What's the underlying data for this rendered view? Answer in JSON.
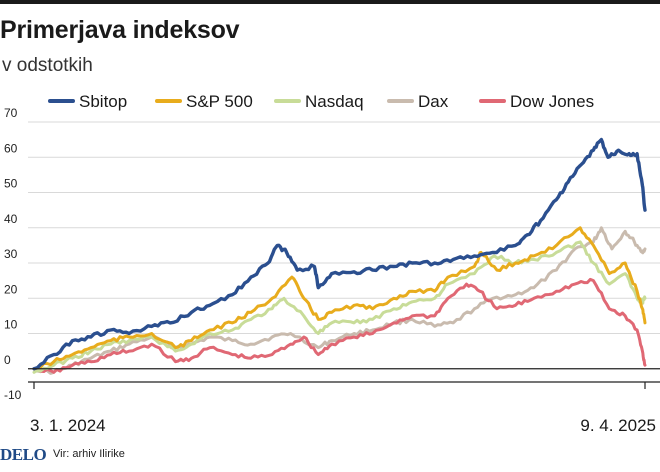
{
  "title": "Primerjava indeksov",
  "subtitle": "v odstotkih",
  "footer": {
    "logo": "DELO",
    "source": "Vir: arhiv Ilirike"
  },
  "colors": {
    "sbitop": "#2b4f8f",
    "sp500": "#e8ac1d",
    "nasdaq": "#c8dc98",
    "dax": "#c9bbae",
    "dowjones": "#e06874",
    "grid": "#d9d9d9",
    "axis": "#222222"
  },
  "chart_data": {
    "type": "line",
    "title": "Primerjava indeksov",
    "subtitle": "v odstotkih",
    "legend_position": "top",
    "grid": true,
    "ylim": [
      -10,
      70
    ],
    "yticks": [
      -10,
      0,
      10,
      20,
      30,
      40,
      50,
      60,
      70
    ],
    "xlim": [
      "2024-01-03",
      "2025-04-09"
    ],
    "x_labels": [
      "3. 1. 2024",
      "9. 4. 2025"
    ],
    "series": [
      {
        "name": "Sbitop",
        "key": "sbitop",
        "points": [
          [
            "2024-01-03",
            0
          ],
          [
            "2024-01-18",
            4
          ],
          [
            "2024-02-01",
            8
          ],
          [
            "2024-02-15",
            9
          ],
          [
            "2024-03-01",
            11
          ],
          [
            "2024-03-15",
            10
          ],
          [
            "2024-04-01",
            12
          ],
          [
            "2024-04-15",
            13
          ],
          [
            "2024-05-01",
            16
          ],
          [
            "2024-05-15",
            18
          ],
          [
            "2024-06-01",
            21
          ],
          [
            "2024-06-15",
            26
          ],
          [
            "2024-06-28",
            30
          ],
          [
            "2024-07-05",
            35
          ],
          [
            "2024-07-12",
            33
          ],
          [
            "2024-07-20",
            28
          ],
          [
            "2024-08-02",
            29
          ],
          [
            "2024-08-05",
            23
          ],
          [
            "2024-08-15",
            27
          ],
          [
            "2024-09-01",
            27.5
          ],
          [
            "2024-09-15",
            28
          ],
          [
            "2024-10-01",
            29
          ],
          [
            "2024-10-15",
            30
          ],
          [
            "2024-11-01",
            30
          ],
          [
            "2024-11-15",
            31
          ],
          [
            "2024-12-01",
            32
          ],
          [
            "2024-12-15",
            33
          ],
          [
            "2025-01-01",
            35
          ],
          [
            "2025-01-10",
            38
          ],
          [
            "2025-01-20",
            42
          ],
          [
            "2025-02-01",
            48
          ],
          [
            "2025-02-10",
            53
          ],
          [
            "2025-02-20",
            58
          ],
          [
            "2025-03-01",
            62
          ],
          [
            "2025-03-07",
            65
          ],
          [
            "2025-03-12",
            60
          ],
          [
            "2025-03-20",
            62
          ],
          [
            "2025-03-28",
            61
          ],
          [
            "2025-04-03",
            61
          ],
          [
            "2025-04-07",
            52
          ],
          [
            "2025-04-09",
            45
          ]
        ]
      },
      {
        "name": "S&P 500",
        "key": "sp500",
        "points": [
          [
            "2024-01-03",
            0
          ],
          [
            "2024-01-18",
            2
          ],
          [
            "2024-02-01",
            4
          ],
          [
            "2024-02-15",
            6
          ],
          [
            "2024-03-01",
            8
          ],
          [
            "2024-03-15",
            9
          ],
          [
            "2024-04-01",
            10
          ],
          [
            "2024-04-19",
            6
          ],
          [
            "2024-05-01",
            8
          ],
          [
            "2024-05-15",
            11
          ],
          [
            "2024-06-01",
            13
          ],
          [
            "2024-06-15",
            16
          ],
          [
            "2024-07-01",
            20
          ],
          [
            "2024-07-16",
            26
          ],
          [
            "2024-07-25",
            20
          ],
          [
            "2024-08-05",
            14
          ],
          [
            "2024-08-15",
            16
          ],
          [
            "2024-09-01",
            18
          ],
          [
            "2024-09-15",
            17
          ],
          [
            "2024-10-01",
            20
          ],
          [
            "2024-10-15",
            22
          ],
          [
            "2024-11-01",
            22
          ],
          [
            "2024-11-11",
            26
          ],
          [
            "2024-12-01",
            29
          ],
          [
            "2024-12-06",
            33
          ],
          [
            "2024-12-18",
            28
          ],
          [
            "2025-01-01",
            30
          ],
          [
            "2025-01-15",
            32
          ],
          [
            "2025-02-01",
            35
          ],
          [
            "2025-02-19",
            40
          ],
          [
            "2025-03-01",
            35
          ],
          [
            "2025-03-13",
            27
          ],
          [
            "2025-03-25",
            30
          ],
          [
            "2025-04-03",
            22
          ],
          [
            "2025-04-07",
            17
          ],
          [
            "2025-04-09",
            13
          ]
        ]
      },
      {
        "name": "Nasdaq",
        "key": "nasdaq",
        "points": [
          [
            "2024-01-03",
            -1
          ],
          [
            "2024-01-18",
            1
          ],
          [
            "2024-02-01",
            3
          ],
          [
            "2024-02-15",
            5
          ],
          [
            "2024-03-01",
            7
          ],
          [
            "2024-03-15",
            8
          ],
          [
            "2024-04-01",
            9
          ],
          [
            "2024-04-19",
            5
          ],
          [
            "2024-05-01",
            7
          ],
          [
            "2024-05-15",
            10
          ],
          [
            "2024-06-01",
            11
          ],
          [
            "2024-06-15",
            14
          ],
          [
            "2024-07-01",
            17
          ],
          [
            "2024-07-10",
            20
          ],
          [
            "2024-07-25",
            15
          ],
          [
            "2024-08-05",
            10
          ],
          [
            "2024-08-15",
            13
          ],
          [
            "2024-09-01",
            13
          ],
          [
            "2024-09-15",
            14
          ],
          [
            "2024-10-01",
            17
          ],
          [
            "2024-10-15",
            19
          ],
          [
            "2024-11-01",
            20
          ],
          [
            "2024-11-11",
            24
          ],
          [
            "2024-12-01",
            27
          ],
          [
            "2024-12-16",
            32
          ],
          [
            "2025-01-01",
            30
          ],
          [
            "2025-01-15",
            31
          ],
          [
            "2025-02-01",
            33
          ],
          [
            "2025-02-19",
            36
          ],
          [
            "2025-03-01",
            30
          ],
          [
            "2025-03-13",
            24
          ],
          [
            "2025-03-25",
            27
          ],
          [
            "2025-04-03",
            20
          ],
          [
            "2025-04-07",
            19
          ],
          [
            "2025-04-09",
            20
          ]
        ]
      },
      {
        "name": "Dax",
        "key": "dax",
        "points": [
          [
            "2024-01-03",
            0
          ],
          [
            "2024-01-18",
            -1
          ],
          [
            "2024-02-01",
            1
          ],
          [
            "2024-02-15",
            3
          ],
          [
            "2024-03-01",
            5
          ],
          [
            "2024-03-15",
            7
          ],
          [
            "2024-04-01",
            9
          ],
          [
            "2024-04-19",
            6
          ],
          [
            "2024-05-01",
            7
          ],
          [
            "2024-05-15",
            9
          ],
          [
            "2024-06-01",
            8
          ],
          [
            "2024-06-15",
            7
          ],
          [
            "2024-07-01",
            9
          ],
          [
            "2024-07-15",
            10
          ],
          [
            "2024-08-05",
            6
          ],
          [
            "2024-08-15",
            8
          ],
          [
            "2024-09-01",
            10
          ],
          [
            "2024-09-15",
            11
          ],
          [
            "2024-10-01",
            13
          ],
          [
            "2024-10-15",
            14
          ],
          [
            "2024-11-01",
            12
          ],
          [
            "2024-11-15",
            13
          ],
          [
            "2024-12-01",
            17
          ],
          [
            "2024-12-15",
            20
          ],
          [
            "2025-01-01",
            21
          ],
          [
            "2025-01-15",
            23
          ],
          [
            "2025-02-01",
            28
          ],
          [
            "2025-02-15",
            34
          ],
          [
            "2025-03-01",
            36
          ],
          [
            "2025-03-07",
            40
          ],
          [
            "2025-03-15",
            34
          ],
          [
            "2025-03-25",
            39
          ],
          [
            "2025-04-01",
            36
          ],
          [
            "2025-04-07",
            33
          ],
          [
            "2025-04-09",
            34
          ]
        ]
      },
      {
        "name": "Dow Jones",
        "key": "dowjones",
        "points": [
          [
            "2024-01-03",
            0
          ],
          [
            "2024-01-18",
            -1
          ],
          [
            "2024-02-01",
            1
          ],
          [
            "2024-02-15",
            2
          ],
          [
            "2024-03-01",
            4
          ],
          [
            "2024-03-15",
            5
          ],
          [
            "2024-04-01",
            7
          ],
          [
            "2024-04-19",
            2
          ],
          [
            "2024-05-01",
            3
          ],
          [
            "2024-05-15",
            6
          ],
          [
            "2024-06-01",
            4
          ],
          [
            "2024-06-15",
            3
          ],
          [
            "2024-07-01",
            4
          ],
          [
            "2024-07-15",
            7
          ],
          [
            "2024-07-25",
            9
          ],
          [
            "2024-08-05",
            4
          ],
          [
            "2024-08-15",
            7
          ],
          [
            "2024-09-01",
            9
          ],
          [
            "2024-09-15",
            10
          ],
          [
            "2024-10-01",
            13
          ],
          [
            "2024-10-15",
            15
          ],
          [
            "2024-11-01",
            15
          ],
          [
            "2024-11-11",
            20
          ],
          [
            "2024-11-25",
            24
          ],
          [
            "2024-12-05",
            22
          ],
          [
            "2024-12-18",
            17
          ],
          [
            "2025-01-01",
            18
          ],
          [
            "2025-01-15",
            20
          ],
          [
            "2025-02-01",
            22
          ],
          [
            "2025-02-15",
            24
          ],
          [
            "2025-03-01",
            25
          ],
          [
            "2025-03-13",
            17
          ],
          [
            "2025-03-25",
            15
          ],
          [
            "2025-04-03",
            11
          ],
          [
            "2025-04-07",
            5
          ],
          [
            "2025-04-09",
            1
          ]
        ]
      }
    ]
  }
}
